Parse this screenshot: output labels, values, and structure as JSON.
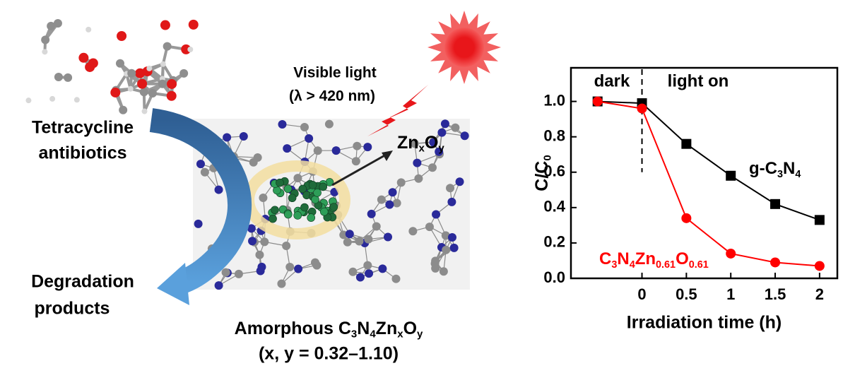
{
  "diagram": {
    "molecule_label": [
      "Tetracycline",
      "antibiotics"
    ],
    "product_label": [
      "Degradation",
      "products"
    ],
    "light_label": [
      "Visible light",
      "(λ > 420 nm)"
    ],
    "cluster_label": [
      "Zn",
      {
        "sub": "x"
      },
      "O",
      {
        "sub": "y"
      }
    ],
    "material_label": [
      [
        "Amorphous C",
        {
          "sub": "3"
        },
        "N",
        {
          "sub": "4"
        },
        "Zn",
        {
          "sub": "x"
        },
        "O",
        {
          "sub": "y"
        }
      ],
      "(x, y = 0.32–1.10)"
    ]
  },
  "chart_data": {
    "type": "line",
    "x": [
      -0.5,
      0,
      0.5,
      1,
      1.5,
      2
    ],
    "series": [
      {
        "name": [
          "g-C",
          {
            "sub": "3"
          },
          "N",
          {
            "sub": "4"
          }
        ],
        "color": "#000000",
        "values": [
          1.0,
          0.99,
          0.76,
          0.58,
          0.42,
          0.33
        ]
      },
      {
        "name": [
          "C",
          {
            "sub": "3"
          },
          "N",
          {
            "sub": "4"
          },
          "Zn",
          {
            "sub": "0.61"
          },
          "O",
          {
            "sub": "0.61"
          }
        ],
        "color": "#ff0000",
        "values": [
          1.0,
          0.96,
          0.34,
          0.14,
          0.09,
          0.07
        ]
      }
    ],
    "xlabel": "Irradiation time (h)",
    "ylabel": [
      "C/C",
      {
        "sub": "0"
      }
    ],
    "annotations": [
      "dark",
      "light on"
    ],
    "xlim": [
      -0.8,
      2.2
    ],
    "ylim": [
      0,
      1.19
    ],
    "xticks": [
      0,
      0.5,
      1,
      1.5,
      2
    ],
    "yticks": [
      {
        "value": 0,
        "label": "0.0"
      },
      {
        "value": 0.2,
        "label": "0.2"
      },
      {
        "value": 0.4,
        "label": "0.4"
      },
      {
        "value": 0.6,
        "label": "0.6"
      },
      {
        "value": 0.8,
        "label": "0.8"
      },
      {
        "value": 1.0,
        "label": "1.0"
      }
    ]
  }
}
